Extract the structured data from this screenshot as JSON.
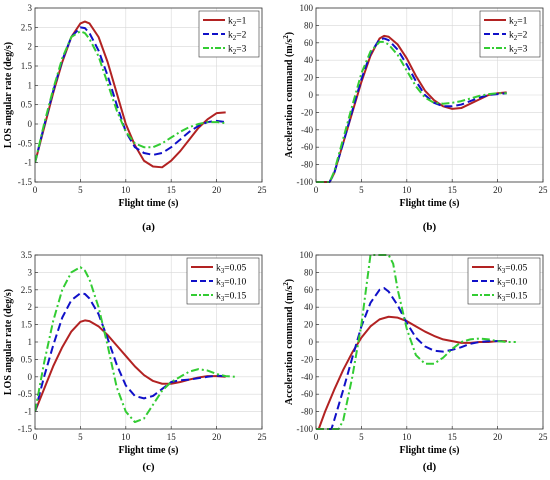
{
  "chart_data": [
    {
      "id": "a",
      "type": "line",
      "caption": "(a)",
      "xlabel": "Flight time (s)",
      "ylabel": "LOS angular rate (deg/s)",
      "xlim": [
        0,
        25
      ],
      "ylim": [
        -1.5,
        3
      ],
      "xticks": [
        0,
        5,
        10,
        15,
        20,
        25
      ],
      "yticks": [
        -1.5,
        -1,
        -0.5,
        0,
        0.5,
        1,
        1.5,
        2,
        2.5,
        3
      ],
      "grid": true,
      "legend_position": "top-right",
      "series": [
        {
          "name": "k2=1",
          "name_base": "k",
          "name_sub": "2",
          "name_rest": "=1",
          "color": "#b22222",
          "dash": "solid",
          "x": [
            0,
            1,
            2,
            3,
            4,
            5,
            5.5,
            6,
            7,
            8,
            9,
            10,
            11,
            12,
            13,
            14,
            15,
            16,
            17,
            18,
            19,
            20,
            21
          ],
          "y": [
            -1.0,
            -0.1,
            0.8,
            1.6,
            2.25,
            2.6,
            2.65,
            2.6,
            2.25,
            1.6,
            0.8,
            0.0,
            -0.55,
            -0.95,
            -1.1,
            -1.12,
            -0.95,
            -0.7,
            -0.4,
            -0.1,
            0.12,
            0.28,
            0.3
          ]
        },
        {
          "name": "k2=2",
          "name_base": "k",
          "name_sub": "2",
          "name_rest": "=2",
          "color": "#1010c8",
          "dash": "8,4",
          "x": [
            0,
            1,
            2,
            3,
            4,
            5,
            5.5,
            6,
            7,
            8,
            9,
            10,
            11,
            12,
            13,
            14,
            15,
            16,
            17,
            18,
            19,
            20,
            21
          ],
          "y": [
            -1.0,
            -0.05,
            0.85,
            1.65,
            2.25,
            2.5,
            2.48,
            2.35,
            1.9,
            1.25,
            0.5,
            -0.2,
            -0.6,
            -0.75,
            -0.8,
            -0.75,
            -0.6,
            -0.4,
            -0.2,
            -0.05,
            0.05,
            0.08,
            0.05
          ]
        },
        {
          "name": "k2=3",
          "name_base": "k",
          "name_sub": "2",
          "name_rest": "=3",
          "color": "#33cc33",
          "dash": "8,3,2,3",
          "x": [
            0,
            1,
            2,
            3,
            4,
            5,
            5.5,
            6,
            7,
            8,
            9,
            10,
            11,
            12,
            13,
            14,
            15,
            16,
            17,
            18,
            19,
            20,
            21
          ],
          "y": [
            -1.0,
            0.0,
            0.9,
            1.7,
            2.25,
            2.4,
            2.35,
            2.2,
            1.75,
            1.05,
            0.35,
            -0.2,
            -0.5,
            -0.6,
            -0.6,
            -0.5,
            -0.35,
            -0.2,
            -0.08,
            0.0,
            0.05,
            0.05,
            0.02
          ]
        }
      ]
    },
    {
      "id": "b",
      "type": "line",
      "caption": "(b)",
      "xlabel": "Flight time (s)",
      "ylabel_base": "Acceleration command (m/s",
      "ylabel_sup": "2",
      "ylabel_end": ")",
      "xlim": [
        0,
        25
      ],
      "ylim": [
        -100,
        100
      ],
      "xticks": [
        0,
        5,
        10,
        15,
        20,
        25
      ],
      "yticks": [
        -100,
        -80,
        -60,
        -40,
        -20,
        0,
        20,
        40,
        60,
        80,
        100
      ],
      "grid": true,
      "legend_position": "top-right",
      "series": [
        {
          "name": "k2=1",
          "name_base": "k",
          "name_sub": "2",
          "name_rest": "=1",
          "color": "#b22222",
          "dash": "solid",
          "x": [
            0,
            1,
            1.5,
            2,
            3,
            4,
            5,
            6,
            7,
            7.5,
            8,
            9,
            10,
            11,
            12,
            13,
            14,
            15,
            16,
            17,
            18,
            19,
            20,
            21
          ],
          "y": [
            -100,
            -100,
            -100,
            -90,
            -55,
            -20,
            15,
            45,
            65,
            68,
            67,
            58,
            42,
            22,
            5,
            -6,
            -13,
            -16,
            -15,
            -10,
            -5,
            0,
            2,
            3
          ]
        },
        {
          "name": "k2=2",
          "name_base": "k",
          "name_sub": "2",
          "name_rest": "=2",
          "color": "#1010c8",
          "dash": "8,4",
          "x": [
            0,
            1,
            1.5,
            2,
            3,
            4,
            5,
            6,
            7,
            7.5,
            8,
            9,
            10,
            11,
            12,
            13,
            14,
            15,
            16,
            17,
            18,
            19,
            20,
            21
          ],
          "y": [
            -100,
            -100,
            -100,
            -90,
            -55,
            -18,
            18,
            48,
            64,
            65,
            63,
            52,
            35,
            16,
            0,
            -9,
            -13,
            -13,
            -11,
            -7,
            -3,
            0,
            1,
            2
          ]
        },
        {
          "name": "k2=3",
          "name_base": "k",
          "name_sub": "2",
          "name_rest": "=3",
          "color": "#33cc33",
          "dash": "8,3,2,3",
          "x": [
            0,
            1,
            1.5,
            2,
            3,
            4,
            5,
            6,
            7,
            7.5,
            8,
            9,
            10,
            11,
            12,
            13,
            14,
            15,
            16,
            17,
            18,
            19,
            20,
            21
          ],
          "y": [
            -100,
            -100,
            -100,
            -88,
            -50,
            -12,
            25,
            50,
            61,
            61,
            58,
            46,
            28,
            10,
            -3,
            -9,
            -10,
            -9,
            -7,
            -4,
            -1,
            1,
            2,
            2
          ]
        }
      ]
    },
    {
      "id": "c",
      "type": "line",
      "caption": "(c)",
      "xlabel": "Flight time (s)",
      "ylabel": "LOS angular rate (deg/s)",
      "xlim": [
        0,
        25
      ],
      "ylim": [
        -1.5,
        3.5
      ],
      "xticks": [
        0,
        5,
        10,
        15,
        20,
        25
      ],
      "yticks": [
        -1.5,
        -1,
        -0.5,
        0,
        0.5,
        1,
        1.5,
        2,
        2.5,
        3,
        3.5
      ],
      "grid": true,
      "legend_position": "top-right",
      "series": [
        {
          "name": "k3=0.05",
          "name_base": "k",
          "name_sub": "3",
          "name_rest": "=0.05",
          "color": "#b22222",
          "dash": "solid",
          "x": [
            0,
            1,
            2,
            3,
            4,
            5,
            5.5,
            6,
            7,
            8,
            9,
            10,
            11,
            12,
            13,
            14,
            15,
            16,
            17,
            18,
            19,
            20,
            21
          ],
          "y": [
            -1.0,
            -0.35,
            0.3,
            0.85,
            1.3,
            1.58,
            1.62,
            1.6,
            1.45,
            1.2,
            0.9,
            0.6,
            0.3,
            0.05,
            -0.12,
            -0.2,
            -0.2,
            -0.15,
            -0.08,
            -0.02,
            0.02,
            0.02,
            0.0
          ]
        },
        {
          "name": "k3=0.10",
          "name_base": "k",
          "name_sub": "3",
          "name_rest": "=0.10",
          "color": "#1010c8",
          "dash": "8,4",
          "x": [
            0,
            1,
            2,
            3,
            4,
            5,
            5.5,
            6,
            7,
            8,
            9,
            10,
            11,
            12,
            13,
            14,
            15,
            16,
            17,
            18,
            19,
            20,
            21
          ],
          "y": [
            -1.0,
            0.0,
            0.9,
            1.7,
            2.2,
            2.4,
            2.38,
            2.25,
            1.8,
            1.1,
            0.35,
            -0.25,
            -0.55,
            -0.62,
            -0.55,
            -0.35,
            -0.15,
            -0.1,
            -0.08,
            -0.04,
            0.0,
            0.03,
            0.02
          ]
        },
        {
          "name": "k3=0.15",
          "name_base": "k",
          "name_sub": "3",
          "name_rest": "=0.15",
          "color": "#33cc33",
          "dash": "8,3,2,3",
          "x": [
            0,
            1,
            2,
            3,
            4,
            5,
            5.5,
            6,
            7,
            8,
            9,
            10,
            11,
            12,
            13,
            14,
            15,
            16,
            17,
            18,
            19,
            20,
            21,
            22
          ],
          "y": [
            -1.0,
            0.4,
            1.6,
            2.5,
            3.0,
            3.15,
            3.05,
            2.8,
            2.0,
            0.9,
            -0.3,
            -1.0,
            -1.3,
            -1.2,
            -0.8,
            -0.4,
            -0.15,
            0.0,
            0.15,
            0.22,
            0.18,
            0.08,
            0.02,
            0.0
          ]
        }
      ]
    },
    {
      "id": "d",
      "type": "line",
      "caption": "(d)",
      "xlabel": "Flight time (s)",
      "ylabel_base": "Acceleration command (m/s",
      "ylabel_sup": "2",
      "ylabel_end": ")",
      "xlim": [
        0,
        25
      ],
      "ylim": [
        -100,
        100
      ],
      "xticks": [
        0,
        5,
        10,
        15,
        20,
        25
      ],
      "yticks": [
        -100,
        -80,
        -60,
        -40,
        -20,
        0,
        20,
        40,
        60,
        80,
        100
      ],
      "grid": true,
      "legend_position": "top-right",
      "series": [
        {
          "name": "k3=0.05",
          "name_base": "k",
          "name_sub": "3",
          "name_rest": "=0.05",
          "color": "#b22222",
          "dash": "solid",
          "x": [
            0.3,
            1,
            2,
            3,
            4,
            5,
            6,
            7,
            8,
            9,
            10,
            11,
            12,
            13,
            14,
            15,
            16,
            17,
            18,
            19,
            20,
            21
          ],
          "y": [
            -100,
            -80,
            -55,
            -32,
            -12,
            5,
            18,
            26,
            29,
            28,
            24,
            18,
            12,
            7,
            3,
            1,
            -1,
            -1,
            0,
            0,
            1,
            1
          ]
        },
        {
          "name": "k3=0.10",
          "name_base": "k",
          "name_sub": "3",
          "name_rest": "=0.10",
          "color": "#1010c8",
          "dash": "8,4",
          "x": [
            0,
            1,
            1.7,
            2,
            3,
            4,
            5,
            6,
            7,
            7.5,
            8,
            9,
            10,
            11,
            12,
            13,
            14,
            15,
            16,
            17,
            18,
            19,
            20,
            21
          ],
          "y": [
            -100,
            -100,
            -100,
            -90,
            -55,
            -18,
            18,
            45,
            60,
            62,
            58,
            42,
            22,
            5,
            -5,
            -10,
            -11,
            -9,
            -6,
            -2,
            0,
            1,
            1,
            1
          ]
        },
        {
          "name": "k3=0.15",
          "name_base": "k",
          "name_sub": "3",
          "name_rest": "=0.15",
          "color": "#33cc33",
          "dash": "8,3,2,3",
          "x": [
            0,
            1,
            2,
            2.5,
            3,
            4,
            5,
            6,
            7,
            8,
            8.5,
            9,
            10,
            11,
            12,
            13,
            14,
            15,
            16,
            17,
            18,
            19,
            20,
            21,
            22
          ],
          "y": [
            -100,
            -100,
            -100,
            -100,
            -90,
            -40,
            20,
            100,
            100,
            100,
            90,
            60,
            15,
            -15,
            -25,
            -25,
            -18,
            -8,
            0,
            3,
            4,
            3,
            1,
            0,
            0
          ]
        }
      ]
    }
  ]
}
